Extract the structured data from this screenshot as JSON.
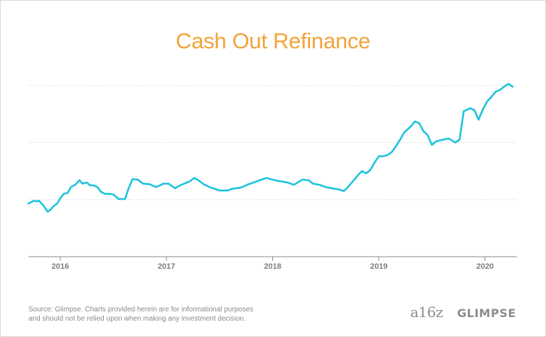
{
  "title": "Cash Out Refinance",
  "source_line1": "Source: Glimpse. Charts provided herein are for informational purposes",
  "source_line2": "and should not be relied upon when making any investment decision.",
  "logos": {
    "a16z": "a16z",
    "glimpse": "GLIMPSE"
  },
  "colors": {
    "line": "#1ec3dc",
    "title": "#f2a33a",
    "grid": "#d8d8d8",
    "axis": "#8a8a8a",
    "text": "#7d7d7d"
  },
  "chart_data": {
    "type": "line",
    "title": "Cash Out Refinance",
    "xlabel": "",
    "ylabel": "",
    "x_ticks": [
      2016,
      2017,
      2018,
      2019,
      2020
    ],
    "xlim": [
      2015.7,
      2020.3
    ],
    "ylim": [
      0,
      4
    ],
    "y_gridlines": [
      1,
      2,
      3
    ],
    "y_tick_labels_shown": false,
    "grid": "horizontal dotted",
    "series": [
      {
        "name": "",
        "points": [
          [
            2015.7,
            0.93
          ],
          [
            2015.75,
            0.98
          ],
          [
            2015.78,
            0.97
          ],
          [
            2015.8,
            0.98
          ],
          [
            2015.84,
            0.9
          ],
          [
            2015.88,
            0.79
          ],
          [
            2015.9,
            0.81
          ],
          [
            2015.94,
            0.89
          ],
          [
            2015.97,
            0.93
          ],
          [
            2016.0,
            1.02
          ],
          [
            2016.03,
            1.1
          ],
          [
            2016.07,
            1.12
          ],
          [
            2016.1,
            1.22
          ],
          [
            2016.14,
            1.26
          ],
          [
            2016.18,
            1.34
          ],
          [
            2016.21,
            1.28
          ],
          [
            2016.25,
            1.3
          ],
          [
            2016.28,
            1.25
          ],
          [
            2016.31,
            1.25
          ],
          [
            2016.35,
            1.22
          ],
          [
            2016.38,
            1.14
          ],
          [
            2016.42,
            1.1
          ],
          [
            2016.46,
            1.1
          ],
          [
            2016.5,
            1.09
          ],
          [
            2016.55,
            1.01
          ],
          [
            2016.61,
            1.01
          ],
          [
            2016.64,
            1.18
          ],
          [
            2016.68,
            1.36
          ],
          [
            2016.73,
            1.35
          ],
          [
            2016.78,
            1.28
          ],
          [
            2016.84,
            1.27
          ],
          [
            2016.9,
            1.22
          ],
          [
            2016.94,
            1.25
          ],
          [
            2016.97,
            1.28
          ],
          [
            2017.02,
            1.28
          ],
          [
            2017.08,
            1.2
          ],
          [
            2017.14,
            1.26
          ],
          [
            2017.22,
            1.32
          ],
          [
            2017.26,
            1.38
          ],
          [
            2017.3,
            1.34
          ],
          [
            2017.35,
            1.27
          ],
          [
            2017.42,
            1.21
          ],
          [
            2017.5,
            1.16
          ],
          [
            2017.58,
            1.16
          ],
          [
            2017.62,
            1.19
          ],
          [
            2017.7,
            1.21
          ],
          [
            2017.76,
            1.26
          ],
          [
            2017.82,
            1.3
          ],
          [
            2017.88,
            1.34
          ],
          [
            2017.94,
            1.38
          ],
          [
            2018.02,
            1.34
          ],
          [
            2018.08,
            1.32
          ],
          [
            2018.14,
            1.3
          ],
          [
            2018.2,
            1.26
          ],
          [
            2018.28,
            1.35
          ],
          [
            2018.34,
            1.34
          ],
          [
            2018.38,
            1.28
          ],
          [
            2018.44,
            1.26
          ],
          [
            2018.5,
            1.22
          ],
          [
            2018.55,
            1.2
          ],
          [
            2018.62,
            1.18
          ],
          [
            2018.67,
            1.15
          ],
          [
            2018.7,
            1.2
          ],
          [
            2018.76,
            1.33
          ],
          [
            2018.8,
            1.42
          ],
          [
            2018.84,
            1.5
          ],
          [
            2018.88,
            1.46
          ],
          [
            2018.92,
            1.52
          ],
          [
            2018.96,
            1.65
          ],
          [
            2019.0,
            1.76
          ],
          [
            2019.04,
            1.76
          ],
          [
            2019.08,
            1.78
          ],
          [
            2019.12,
            1.83
          ],
          [
            2019.16,
            1.93
          ],
          [
            2019.2,
            2.05
          ],
          [
            2019.24,
            2.18
          ],
          [
            2019.3,
            2.28
          ],
          [
            2019.34,
            2.37
          ],
          [
            2019.38,
            2.34
          ],
          [
            2019.42,
            2.2
          ],
          [
            2019.46,
            2.13
          ],
          [
            2019.5,
            1.96
          ],
          [
            2019.54,
            2.02
          ],
          [
            2019.6,
            2.05
          ],
          [
            2019.66,
            2.07
          ],
          [
            2019.72,
            2.0
          ],
          [
            2019.76,
            2.05
          ],
          [
            2019.8,
            2.55
          ],
          [
            2019.86,
            2.6
          ],
          [
            2019.9,
            2.57
          ],
          [
            2019.94,
            2.4
          ],
          [
            2019.98,
            2.58
          ],
          [
            2020.02,
            2.72
          ],
          [
            2020.06,
            2.8
          ],
          [
            2020.1,
            2.89
          ],
          [
            2020.14,
            2.92
          ],
          [
            2020.18,
            2.98
          ],
          [
            2020.22,
            3.03
          ],
          [
            2020.26,
            2.98
          ]
        ]
      }
    ]
  }
}
